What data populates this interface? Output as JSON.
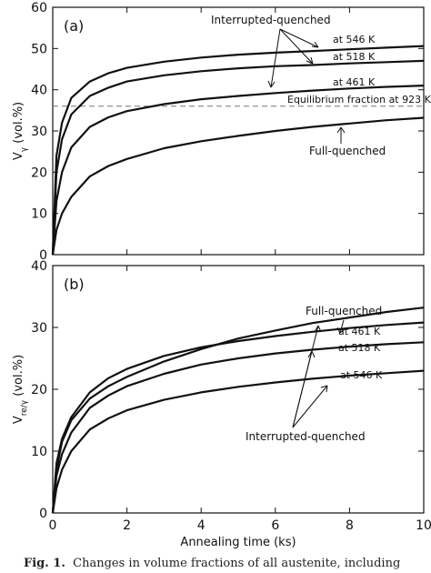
{
  "caption": {
    "label": "Fig. 1.",
    "text": "Changes in volume fractions of all austenite, including"
  },
  "chart_data": [
    {
      "panel": "(a)",
      "type": "line",
      "xlabel": "",
      "ylabel": "Vγ (vol.%)",
      "xlim": [
        0,
        10
      ],
      "ylim": [
        0,
        60
      ],
      "yticks": [
        0,
        10,
        20,
        30,
        40,
        50,
        60
      ],
      "xticks": [
        0,
        2,
        4,
        6,
        8,
        10
      ],
      "grid": false,
      "reference_line": {
        "label": "Equilibrium fraction at 923 K",
        "y": 36
      },
      "group_label": "Interrupted-quenched",
      "series": [
        {
          "name": "at 546 K",
          "x": [
            0,
            0.1,
            0.25,
            0.5,
            1,
            1.5,
            2,
            3,
            4,
            5,
            6,
            7,
            8,
            9,
            10
          ],
          "values": [
            0,
            24,
            32,
            38,
            42,
            44,
            45.3,
            46.8,
            47.8,
            48.5,
            49,
            49.4,
            49.8,
            50.2,
            50.6
          ]
        },
        {
          "name": "at 518 K",
          "x": [
            0,
            0.1,
            0.25,
            0.5,
            1,
            1.5,
            2,
            3,
            4,
            5,
            6,
            7,
            8,
            9,
            10
          ],
          "values": [
            0,
            20,
            28,
            34,
            38.5,
            40.5,
            42,
            43.5,
            44.5,
            45.2,
            45.7,
            46,
            46.4,
            46.7,
            47
          ]
        },
        {
          "name": "at 461 K",
          "x": [
            0,
            0.1,
            0.25,
            0.5,
            1,
            1.5,
            2,
            3,
            4,
            5,
            6,
            7,
            8,
            9,
            10
          ],
          "values": [
            0,
            13,
            20,
            26,
            31,
            33.3,
            34.8,
            36.5,
            37.7,
            38.5,
            39.2,
            39.8,
            40.3,
            40.7,
            41
          ]
        },
        {
          "name": "Full-quenched",
          "x": [
            0,
            0.1,
            0.25,
            0.5,
            1,
            1.5,
            2,
            3,
            4,
            5,
            6,
            7,
            8,
            9,
            10
          ],
          "values": [
            0,
            6,
            10,
            14,
            19,
            21.5,
            23.2,
            25.8,
            27.5,
            28.8,
            30,
            31,
            31.8,
            32.6,
            33.2
          ]
        }
      ]
    },
    {
      "panel": "(b)",
      "type": "line",
      "xlabel": "Annealing time (ks)",
      "ylabel": "Vre/γ (vol.%)",
      "xlim": [
        0,
        10
      ],
      "ylim": [
        0,
        40
      ],
      "yticks": [
        0,
        10,
        20,
        30,
        40
      ],
      "xticks": [
        0,
        2,
        4,
        6,
        8,
        10
      ],
      "grid": false,
      "group_label": "Interrupted-quenched",
      "series": [
        {
          "name": "Full-quenched",
          "x": [
            0,
            0.1,
            0.25,
            0.5,
            1,
            1.5,
            2,
            3,
            4,
            5,
            6,
            7,
            8,
            9,
            10
          ],
          "values": [
            0,
            7,
            11.5,
            15,
            18.5,
            20.5,
            22,
            24.5,
            26.5,
            28.2,
            29.5,
            30.7,
            31.6,
            32.5,
            33.2
          ]
        },
        {
          "name": "at 461 K",
          "x": [
            0,
            0.1,
            0.25,
            0.5,
            1,
            1.5,
            2,
            3,
            4,
            5,
            6,
            7,
            8,
            9,
            10
          ],
          "values": [
            0,
            8,
            12,
            15.5,
            19.5,
            21.8,
            23.3,
            25.4,
            26.8,
            27.8,
            28.6,
            29.3,
            29.9,
            30.4,
            30.8
          ]
        },
        {
          "name": "at 518 K",
          "x": [
            0,
            0.1,
            0.25,
            0.5,
            1,
            1.5,
            2,
            3,
            4,
            5,
            6,
            7,
            8,
            9,
            10
          ],
          "values": [
            0,
            6,
            9.5,
            13,
            17,
            19,
            20.5,
            22.5,
            24,
            25,
            25.8,
            26.4,
            26.9,
            27.3,
            27.6
          ]
        },
        {
          "name": "at 546 K",
          "x": [
            0,
            0.1,
            0.25,
            0.5,
            1,
            1.5,
            2,
            3,
            4,
            5,
            6,
            7,
            8,
            9,
            10
          ],
          "values": [
            0,
            4,
            7,
            10,
            13.5,
            15.3,
            16.6,
            18.3,
            19.5,
            20.4,
            21.1,
            21.7,
            22.2,
            22.6,
            23
          ]
        }
      ]
    }
  ]
}
